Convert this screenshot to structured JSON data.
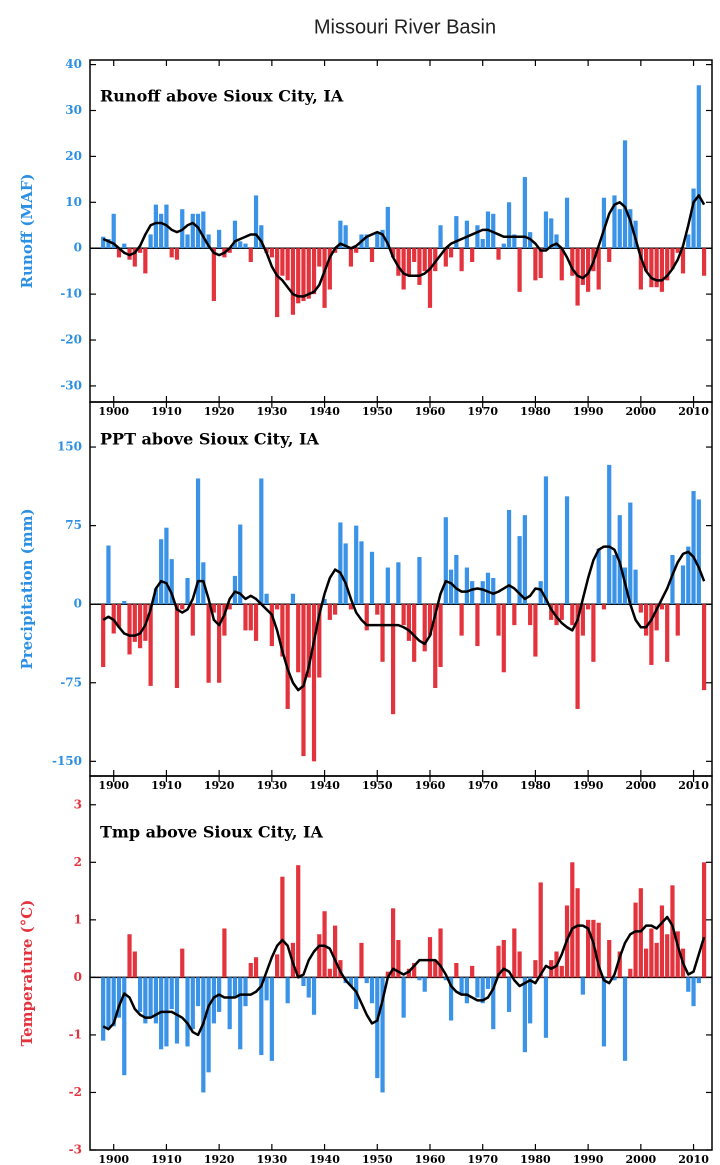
{
  "title": "Missouri River Basin",
  "chart_data": [
    {
      "type": "bar",
      "title": "Runoff above Sioux City, IA",
      "ylabel": "Runoff (MAF)",
      "label_color": "#2b8fe3",
      "x": [
        1898,
        1899,
        1900,
        1901,
        1902,
        1903,
        1904,
        1905,
        1906,
        1907,
        1908,
        1909,
        1910,
        1911,
        1912,
        1913,
        1914,
        1915,
        1916,
        1917,
        1918,
        1919,
        1920,
        1921,
        1922,
        1923,
        1924,
        1925,
        1926,
        1927,
        1928,
        1929,
        1930,
        1931,
        1932,
        1933,
        1934,
        1935,
        1936,
        1937,
        1938,
        1939,
        1940,
        1941,
        1942,
        1943,
        1944,
        1945,
        1946,
        1947,
        1948,
        1949,
        1950,
        1951,
        1952,
        1953,
        1954,
        1955,
        1956,
        1957,
        1958,
        1959,
        1960,
        1961,
        1962,
        1963,
        1964,
        1965,
        1966,
        1967,
        1968,
        1969,
        1970,
        1971,
        1972,
        1973,
        1974,
        1975,
        1976,
        1977,
        1978,
        1979,
        1980,
        1981,
        1982,
        1983,
        1984,
        1985,
        1986,
        1987,
        1988,
        1989,
        1990,
        1991,
        1992,
        1993,
        1994,
        1995,
        1996,
        1997,
        1998,
        1999,
        2000,
        2001,
        2002,
        2003,
        2004,
        2005,
        2006,
        2007,
        2008,
        2009,
        2010,
        2011,
        2012
      ],
      "xlim": [
        1895.5,
        2013.5
      ],
      "xticks": [
        1900,
        1910,
        1920,
        1930,
        1940,
        1950,
        1960,
        1970,
        1980,
        1990,
        2000,
        2010
      ],
      "ylim": [
        -33.5,
        41
      ],
      "yticks": [
        40,
        30,
        20,
        10,
        0,
        -10,
        -20,
        -30
      ],
      "zero_line": true,
      "series": [
        {
          "type": "bar",
          "color_positive": "#3a93e6",
          "color_negative": "#e3343e",
          "values": [
            2.5,
            2,
            7.5,
            -2,
            1,
            -2.5,
            -4,
            -1,
            -5.5,
            3,
            9.5,
            7.5,
            9.5,
            -2,
            -2.5,
            8.5,
            3,
            7.5,
            7.5,
            8,
            3,
            -11.5,
            4,
            -2,
            -1,
            6,
            1.5,
            1,
            -3,
            11.5,
            5,
            -1,
            -2,
            -15,
            -6,
            -7,
            -14.5,
            -12,
            -11.5,
            -11,
            -10,
            -4,
            -13,
            -9,
            -1,
            6,
            5,
            -4,
            -1,
            3,
            3,
            -3,
            3.5,
            4,
            9,
            -2,
            -6,
            -9,
            -6,
            -3,
            -8,
            -5,
            -13,
            -5,
            5,
            -4,
            -2,
            7,
            -5,
            6,
            -3,
            5,
            2,
            8,
            7.5,
            -2.5,
            1,
            10,
            3,
            -9.5,
            15.5,
            3.5,
            -7,
            -6.5,
            8,
            6.5,
            3,
            -7,
            11,
            -6,
            -12.5,
            -8,
            -9.5,
            -5,
            -9,
            11,
            -3,
            11.5,
            8.5,
            23.5,
            8.5,
            6,
            -9,
            -5,
            -8.5,
            -8.5,
            -9.5,
            -7,
            -4.5,
            -1,
            -5.5,
            3,
            13,
            35.5,
            -6
          ]
        },
        {
          "type": "line",
          "color": "#000000",
          "values": [
            2,
            1.5,
            1,
            0,
            -1,
            -1.5,
            -1,
            0.5,
            3,
            5,
            5.5,
            5.5,
            5,
            4,
            3.5,
            4,
            5,
            5.5,
            4.5,
            2.5,
            0.5,
            -1,
            -1.5,
            -1,
            0,
            1.5,
            2,
            2.5,
            3,
            3,
            1.5,
            -1,
            -4,
            -6,
            -7,
            -8.5,
            -10,
            -10.5,
            -10.5,
            -10,
            -9.5,
            -8,
            -5,
            -2,
            0,
            1,
            0.5,
            0,
            0.5,
            1.5,
            2.5,
            3,
            3.5,
            3,
            1,
            -2,
            -4,
            -5.5,
            -6,
            -6,
            -6,
            -5.5,
            -4.5,
            -3,
            -1.5,
            0,
            1,
            1.5,
            2,
            2.5,
            3,
            3.5,
            4,
            4,
            3.5,
            3,
            2.5,
            2.5,
            2.5,
            2.5,
            2.5,
            2,
            1,
            -0.5,
            -0.5,
            0.5,
            1,
            0,
            -2,
            -4.5,
            -6,
            -6.5,
            -5.5,
            -3,
            0.5,
            4,
            7.5,
            9.5,
            10,
            9,
            6,
            2,
            -2,
            -5,
            -6.5,
            -7,
            -7,
            -6,
            -4.5,
            -2.5,
            0.5,
            5,
            10,
            11.5,
            9.5
          ]
        }
      ]
    },
    {
      "type": "bar",
      "title": "PPT above Sioux City, IA",
      "ylabel": "Precipitation (mm)",
      "label_color": "#2b8fe3",
      "x": [
        1898,
        1899,
        1900,
        1901,
        1902,
        1903,
        1904,
        1905,
        1906,
        1907,
        1908,
        1909,
        1910,
        1911,
        1912,
        1913,
        1914,
        1915,
        1916,
        1917,
        1918,
        1919,
        1920,
        1921,
        1922,
        1923,
        1924,
        1925,
        1926,
        1927,
        1928,
        1929,
        1930,
        1931,
        1932,
        1933,
        1934,
        1935,
        1936,
        1937,
        1938,
        1939,
        1940,
        1941,
        1942,
        1943,
        1944,
        1945,
        1946,
        1947,
        1948,
        1949,
        1950,
        1951,
        1952,
        1953,
        1954,
        1955,
        1956,
        1957,
        1958,
        1959,
        1960,
        1961,
        1962,
        1963,
        1964,
        1965,
        1966,
        1967,
        1968,
        1969,
        1970,
        1971,
        1972,
        1973,
        1974,
        1975,
        1976,
        1977,
        1978,
        1979,
        1980,
        1981,
        1982,
        1983,
        1984,
        1985,
        1986,
        1987,
        1988,
        1989,
        1990,
        1991,
        1992,
        1993,
        1994,
        1995,
        1996,
        1997,
        1998,
        1999,
        2000,
        2001,
        2002,
        2003,
        2004,
        2005,
        2006,
        2007,
        2008,
        2009,
        2010,
        2011,
        2012
      ],
      "xlim": [
        1895.5,
        2013.5
      ],
      "xticks": [
        1900,
        1910,
        1920,
        1930,
        1940,
        1950,
        1960,
        1970,
        1980,
        1990,
        2000,
        2010
      ],
      "ylim": [
        -164,
        193
      ],
      "yticks": [
        150,
        75,
        0,
        -75,
        -150
      ],
      "zero_line": true,
      "series": [
        {
          "type": "bar",
          "color_positive": "#3a93e6",
          "color_negative": "#e3343e",
          "values": [
            -60,
            56,
            -28,
            -22,
            3,
            -48,
            -36,
            -42,
            -35,
            -78,
            15,
            62,
            73,
            43,
            -80,
            -5,
            25,
            -30,
            120,
            40,
            -75,
            -8,
            -75,
            -30,
            -5,
            27,
            76,
            -25,
            -25,
            -35,
            120,
            10,
            -40,
            -5,
            -50,
            -100,
            10,
            -65,
            -145,
            -70,
            -150,
            -70,
            5,
            -15,
            -10,
            78,
            58,
            -5,
            75,
            60,
            -25,
            50,
            -10,
            -55,
            35,
            -105,
            40,
            -20,
            -35,
            -55,
            45,
            -45,
            -30,
            -80,
            -60,
            83,
            33,
            47,
            -30,
            35,
            22,
            -40,
            22,
            30,
            25,
            -30,
            -65,
            90,
            -20,
            65,
            85,
            -20,
            -50,
            22,
            122,
            -15,
            -20,
            -15,
            103,
            -20,
            -100,
            -30,
            -5,
            -55,
            53,
            -5,
            133,
            47,
            85,
            35,
            97,
            33,
            -8,
            -30,
            -58,
            -25,
            -5,
            -55,
            47,
            -30,
            37,
            55,
            108,
            100,
            -82
          ]
        },
        {
          "type": "line",
          "color": "#000000",
          "values": [
            -15,
            -12,
            -15,
            -22,
            -28,
            -30,
            -30,
            -28,
            -20,
            -5,
            15,
            22,
            20,
            10,
            -5,
            -8,
            -5,
            5,
            22,
            22,
            5,
            -15,
            -20,
            -10,
            5,
            12,
            10,
            5,
            8,
            5,
            0,
            -5,
            -10,
            -25,
            -45,
            -62,
            -75,
            -82,
            -78,
            -60,
            -35,
            -10,
            10,
            25,
            33,
            30,
            20,
            5,
            -8,
            -15,
            -20,
            -20,
            -20,
            -20,
            -20,
            -20,
            -20,
            -22,
            -25,
            -30,
            -35,
            -38,
            -30,
            -10,
            10,
            22,
            20,
            15,
            12,
            12,
            14,
            15,
            14,
            12,
            10,
            12,
            15,
            18,
            15,
            10,
            5,
            8,
            15,
            14,
            5,
            -5,
            -12,
            -18,
            -22,
            -25,
            -15,
            5,
            25,
            42,
            52,
            55,
            55,
            52,
            40,
            20,
            0,
            -15,
            -22,
            -22,
            -15,
            -5,
            5,
            15,
            28,
            40,
            48,
            50,
            45,
            35,
            22
          ]
        }
      ]
    },
    {
      "type": "bar",
      "title": "Tmp above Sioux City, IA",
      "ylabel": "Temperature (°C)",
      "label_color": "#e3343e",
      "x": [
        1898,
        1899,
        1900,
        1901,
        1902,
        1903,
        1904,
        1905,
        1906,
        1907,
        1908,
        1909,
        1910,
        1911,
        1912,
        1913,
        1914,
        1915,
        1916,
        1917,
        1918,
        1919,
        1920,
        1921,
        1922,
        1923,
        1924,
        1925,
        1926,
        1927,
        1928,
        1929,
        1930,
        1931,
        1932,
        1933,
        1934,
        1935,
        1936,
        1937,
        1938,
        1939,
        1940,
        1941,
        1942,
        1943,
        1944,
        1945,
        1946,
        1947,
        1948,
        1949,
        1950,
        1951,
        1952,
        1953,
        1954,
        1955,
        1956,
        1957,
        1958,
        1959,
        1960,
        1961,
        1962,
        1963,
        1964,
        1965,
        1966,
        1967,
        1968,
        1969,
        1970,
        1971,
        1972,
        1973,
        1974,
        1975,
        1976,
        1977,
        1978,
        1979,
        1980,
        1981,
        1982,
        1983,
        1984,
        1985,
        1986,
        1987,
        1988,
        1989,
        1990,
        1991,
        1992,
        1993,
        1994,
        1995,
        1996,
        1997,
        1998,
        1999,
        2000,
        2001,
        2002,
        2003,
        2004,
        2005,
        2006,
        2007,
        2008,
        2009,
        2010,
        2011,
        2012
      ],
      "xlim": [
        1895.5,
        2013.5
      ],
      "xticks": [
        1900,
        1910,
        1920,
        1930,
        1940,
        1950,
        1960,
        1970,
        1980,
        1990,
        2000,
        2010
      ],
      "ylim": [
        -3,
        3.5
      ],
      "yticks": [
        3,
        2,
        1,
        0,
        -1,
        -2,
        -3
      ],
      "zero_line": true,
      "series": [
        {
          "type": "bar",
          "color_positive": "#e3343e",
          "color_negative": "#3a93e6",
          "values": [
            -1.1,
            -0.9,
            -0.85,
            -0.7,
            -1.7,
            0.75,
            0.45,
            -0.6,
            -0.8,
            -0.7,
            -0.8,
            -1.25,
            -1.2,
            -0.55,
            -1.15,
            0.5,
            -1.2,
            -0.9,
            -0.5,
            -2,
            -1.65,
            -0.8,
            -0.6,
            0.85,
            -0.9,
            -0.35,
            -1.25,
            -0.5,
            0.25,
            0.35,
            -1.35,
            -0.4,
            -1.45,
            0.4,
            1.75,
            -0.45,
            0.6,
            1.95,
            -0.15,
            -0.35,
            -0.65,
            0.75,
            1.15,
            0.15,
            0.9,
            0.3,
            -0.1,
            -0.15,
            -0.55,
            0.6,
            -0.1,
            -0.45,
            -1.75,
            -2,
            0.1,
            1.2,
            0.65,
            -0.7,
            0.15,
            0.25,
            -0.05,
            -0.25,
            0.7,
            0.3,
            0.85,
            -0.05,
            -0.75,
            0.25,
            -0.3,
            -0.45,
            0.2,
            -0.35,
            -0.45,
            -0.2,
            -0.9,
            0.55,
            0.65,
            -0.6,
            0.85,
            0.45,
            -1.3,
            -0.8,
            0.3,
            1.65,
            -1.05,
            0.3,
            0.45,
            0.2,
            1.25,
            2,
            1.55,
            -0.3,
            1,
            1,
            0.95,
            -1.2,
            0.65,
            -0.05,
            0.45,
            -1.45,
            0.15,
            1.3,
            1.55,
            0.5,
            0.85,
            0.6,
            1.25,
            0.75,
            1.6,
            0.8,
            0.5,
            -0.25,
            -0.5,
            -0.1,
            2
          ]
        },
        {
          "type": "line",
          "color": "#000000",
          "values": [
            -0.85,
            -0.9,
            -0.8,
            -0.5,
            -0.28,
            -0.35,
            -0.55,
            -0.65,
            -0.7,
            -0.7,
            -0.65,
            -0.6,
            -0.6,
            -0.6,
            -0.65,
            -0.7,
            -0.8,
            -0.95,
            -1,
            -0.8,
            -0.5,
            -0.35,
            -0.3,
            -0.35,
            -0.35,
            -0.35,
            -0.3,
            -0.3,
            -0.3,
            -0.25,
            -0.15,
            0.1,
            0.35,
            0.55,
            0.65,
            0.55,
            0.25,
            0,
            0.05,
            0.3,
            0.45,
            0.55,
            0.55,
            0.5,
            0.3,
            0.1,
            -0.05,
            -0.15,
            -0.25,
            -0.45,
            -0.65,
            -0.8,
            -0.75,
            -0.4,
            0,
            0.15,
            0.1,
            0.05,
            0.1,
            0.2,
            0.3,
            0.3,
            0.3,
            0.3,
            0.2,
            0.05,
            -0.15,
            -0.25,
            -0.3,
            -0.3,
            -0.35,
            -0.4,
            -0.4,
            -0.35,
            -0.2,
            0.05,
            0.15,
            0.1,
            -0.05,
            -0.15,
            -0.1,
            -0.05,
            -0.1,
            0.05,
            0.2,
            0.15,
            0.2,
            0.4,
            0.65,
            0.85,
            0.9,
            0.9,
            0.85,
            0.6,
            0.2,
            -0.05,
            -0.1,
            0.05,
            0.35,
            0.6,
            0.75,
            0.8,
            0.8,
            0.9,
            0.9,
            0.85,
            0.95,
            1.05,
            0.9,
            0.55,
            0.25,
            0.05,
            0.1,
            0.4,
            0.7
          ]
        }
      ]
    }
  ]
}
